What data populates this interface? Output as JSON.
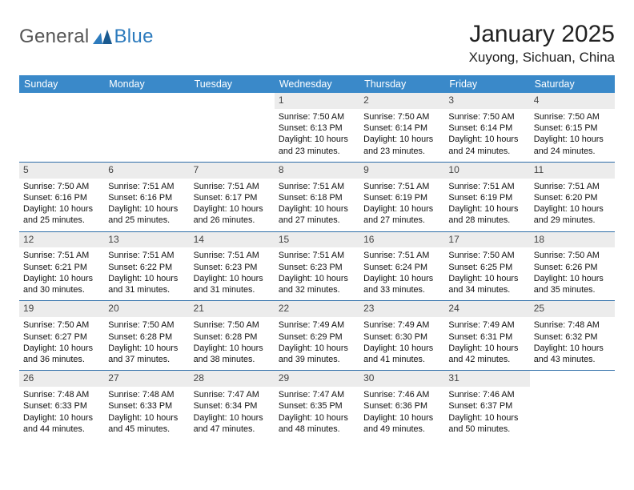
{
  "brand": {
    "general": "General",
    "blue": "Blue"
  },
  "title": "January 2025",
  "location": "Xuyong, Sichuan, China",
  "colors": {
    "header_bg": "#3a89c9",
    "header_text": "#ffffff",
    "daynum_bg": "#ececec",
    "row_divider": "#2d6da8",
    "logo_blue": "#2d7bbd",
    "logo_gray": "#555555"
  },
  "day_headers": [
    "Sunday",
    "Monday",
    "Tuesday",
    "Wednesday",
    "Thursday",
    "Friday",
    "Saturday"
  ],
  "weeks": [
    [
      null,
      null,
      null,
      {
        "n": "1",
        "sunrise": "7:50 AM",
        "sunset": "6:13 PM",
        "daylight": "10 hours and 23 minutes."
      },
      {
        "n": "2",
        "sunrise": "7:50 AM",
        "sunset": "6:14 PM",
        "daylight": "10 hours and 23 minutes."
      },
      {
        "n": "3",
        "sunrise": "7:50 AM",
        "sunset": "6:14 PM",
        "daylight": "10 hours and 24 minutes."
      },
      {
        "n": "4",
        "sunrise": "7:50 AM",
        "sunset": "6:15 PM",
        "daylight": "10 hours and 24 minutes."
      }
    ],
    [
      {
        "n": "5",
        "sunrise": "7:50 AM",
        "sunset": "6:16 PM",
        "daylight": "10 hours and 25 minutes."
      },
      {
        "n": "6",
        "sunrise": "7:51 AM",
        "sunset": "6:16 PM",
        "daylight": "10 hours and 25 minutes."
      },
      {
        "n": "7",
        "sunrise": "7:51 AM",
        "sunset": "6:17 PM",
        "daylight": "10 hours and 26 minutes."
      },
      {
        "n": "8",
        "sunrise": "7:51 AM",
        "sunset": "6:18 PM",
        "daylight": "10 hours and 27 minutes."
      },
      {
        "n": "9",
        "sunrise": "7:51 AM",
        "sunset": "6:19 PM",
        "daylight": "10 hours and 27 minutes."
      },
      {
        "n": "10",
        "sunrise": "7:51 AM",
        "sunset": "6:19 PM",
        "daylight": "10 hours and 28 minutes."
      },
      {
        "n": "11",
        "sunrise": "7:51 AM",
        "sunset": "6:20 PM",
        "daylight": "10 hours and 29 minutes."
      }
    ],
    [
      {
        "n": "12",
        "sunrise": "7:51 AM",
        "sunset": "6:21 PM",
        "daylight": "10 hours and 30 minutes."
      },
      {
        "n": "13",
        "sunrise": "7:51 AM",
        "sunset": "6:22 PM",
        "daylight": "10 hours and 31 minutes."
      },
      {
        "n": "14",
        "sunrise": "7:51 AM",
        "sunset": "6:23 PM",
        "daylight": "10 hours and 31 minutes."
      },
      {
        "n": "15",
        "sunrise": "7:51 AM",
        "sunset": "6:23 PM",
        "daylight": "10 hours and 32 minutes."
      },
      {
        "n": "16",
        "sunrise": "7:51 AM",
        "sunset": "6:24 PM",
        "daylight": "10 hours and 33 minutes."
      },
      {
        "n": "17",
        "sunrise": "7:50 AM",
        "sunset": "6:25 PM",
        "daylight": "10 hours and 34 minutes."
      },
      {
        "n": "18",
        "sunrise": "7:50 AM",
        "sunset": "6:26 PM",
        "daylight": "10 hours and 35 minutes."
      }
    ],
    [
      {
        "n": "19",
        "sunrise": "7:50 AM",
        "sunset": "6:27 PM",
        "daylight": "10 hours and 36 minutes."
      },
      {
        "n": "20",
        "sunrise": "7:50 AM",
        "sunset": "6:28 PM",
        "daylight": "10 hours and 37 minutes."
      },
      {
        "n": "21",
        "sunrise": "7:50 AM",
        "sunset": "6:28 PM",
        "daylight": "10 hours and 38 minutes."
      },
      {
        "n": "22",
        "sunrise": "7:49 AM",
        "sunset": "6:29 PM",
        "daylight": "10 hours and 39 minutes."
      },
      {
        "n": "23",
        "sunrise": "7:49 AM",
        "sunset": "6:30 PM",
        "daylight": "10 hours and 41 minutes."
      },
      {
        "n": "24",
        "sunrise": "7:49 AM",
        "sunset": "6:31 PM",
        "daylight": "10 hours and 42 minutes."
      },
      {
        "n": "25",
        "sunrise": "7:48 AM",
        "sunset": "6:32 PM",
        "daylight": "10 hours and 43 minutes."
      }
    ],
    [
      {
        "n": "26",
        "sunrise": "7:48 AM",
        "sunset": "6:33 PM",
        "daylight": "10 hours and 44 minutes."
      },
      {
        "n": "27",
        "sunrise": "7:48 AM",
        "sunset": "6:33 PM",
        "daylight": "10 hours and 45 minutes."
      },
      {
        "n": "28",
        "sunrise": "7:47 AM",
        "sunset": "6:34 PM",
        "daylight": "10 hours and 47 minutes."
      },
      {
        "n": "29",
        "sunrise": "7:47 AM",
        "sunset": "6:35 PM",
        "daylight": "10 hours and 48 minutes."
      },
      {
        "n": "30",
        "sunrise": "7:46 AM",
        "sunset": "6:36 PM",
        "daylight": "10 hours and 49 minutes."
      },
      {
        "n": "31",
        "sunrise": "7:46 AM",
        "sunset": "6:37 PM",
        "daylight": "10 hours and 50 minutes."
      },
      null
    ]
  ],
  "labels": {
    "sunrise": "Sunrise: ",
    "sunset": "Sunset: ",
    "daylight": "Daylight: "
  }
}
